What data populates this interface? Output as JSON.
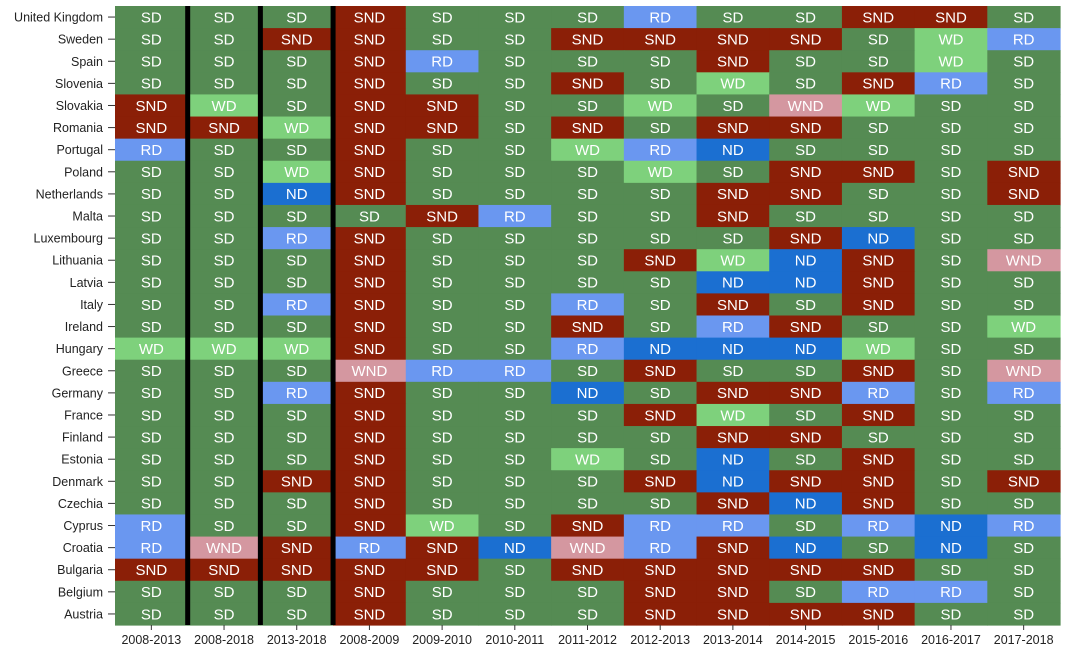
{
  "chart_data": {
    "type": "heatmap",
    "columns": [
      "2008-2013",
      "2008-2018",
      "2013-2018",
      "2008-2009",
      "2009-2010",
      "2010-2011",
      "2011-2012",
      "2012-2013",
      "2013-2014",
      "2014-2015",
      "2015-2016",
      "2016-2017",
      "2017-2018"
    ],
    "rows": [
      "United Kingdom",
      "Sweden",
      "Spain",
      "Slovenia",
      "Slovakia",
      "Romania",
      "Portugal",
      "Poland",
      "Netherlands",
      "Malta",
      "Luxembourg",
      "Lithuania",
      "Latvia",
      "Italy",
      "Ireland",
      "Hungary",
      "Greece",
      "Germany",
      "France",
      "Finland",
      "Estonia",
      "Denmark",
      "Czechia",
      "Cyprus",
      "Croatia",
      "Bulgaria",
      "Belgium",
      "Austria"
    ],
    "values": [
      [
        "SD",
        "SD",
        "SD",
        "SND",
        "SD",
        "SD",
        "SD",
        "RD",
        "SD",
        "SD",
        "SND",
        "SND",
        "SD"
      ],
      [
        "SD",
        "SD",
        "SND",
        "SND",
        "SD",
        "SD",
        "SND",
        "SND",
        "SND",
        "SND",
        "SD",
        "WD",
        "RD"
      ],
      [
        "SD",
        "SD",
        "SD",
        "SND",
        "RD",
        "SD",
        "SD",
        "SD",
        "SND",
        "SD",
        "SD",
        "WD",
        "SD"
      ],
      [
        "SD",
        "SD",
        "SD",
        "SND",
        "SD",
        "SD",
        "SND",
        "SD",
        "WD",
        "SD",
        "SND",
        "RD",
        "SD"
      ],
      [
        "SND",
        "WD",
        "SD",
        "SND",
        "SND",
        "SD",
        "SD",
        "WD",
        "SD",
        "WND",
        "WD",
        "SD",
        "SD"
      ],
      [
        "SND",
        "SND",
        "WD",
        "SND",
        "SND",
        "SD",
        "SND",
        "SD",
        "SND",
        "SND",
        "SD",
        "SD",
        "SD"
      ],
      [
        "RD",
        "SD",
        "SD",
        "SND",
        "SD",
        "SD",
        "WD",
        "RD",
        "ND",
        "SD",
        "SD",
        "SD",
        "SD"
      ],
      [
        "SD",
        "SD",
        "WD",
        "SND",
        "SD",
        "SD",
        "SD",
        "WD",
        "SD",
        "SND",
        "SND",
        "SD",
        "SND"
      ],
      [
        "SD",
        "SD",
        "ND",
        "SND",
        "SD",
        "SD",
        "SD",
        "SD",
        "SND",
        "SND",
        "SD",
        "SD",
        "SND"
      ],
      [
        "SD",
        "SD",
        "SD",
        "SD",
        "SND",
        "RD",
        "SD",
        "SD",
        "SND",
        "SD",
        "SD",
        "SD",
        "SD"
      ],
      [
        "SD",
        "SD",
        "RD",
        "SND",
        "SD",
        "SD",
        "SD",
        "SD",
        "SD",
        "SND",
        "ND",
        "SD",
        "SD"
      ],
      [
        "SD",
        "SD",
        "SD",
        "SND",
        "SD",
        "SD",
        "SD",
        "SND",
        "WD",
        "ND",
        "SND",
        "SD",
        "WND"
      ],
      [
        "SD",
        "SD",
        "SD",
        "SND",
        "SD",
        "SD",
        "SD",
        "SD",
        "ND",
        "ND",
        "SND",
        "SD",
        "SD"
      ],
      [
        "SD",
        "SD",
        "RD",
        "SND",
        "SD",
        "SD",
        "RD",
        "SD",
        "SND",
        "SD",
        "SND",
        "SD",
        "SD"
      ],
      [
        "SD",
        "SD",
        "SD",
        "SND",
        "SD",
        "SD",
        "SND",
        "SD",
        "RD",
        "SND",
        "SD",
        "SD",
        "WD"
      ],
      [
        "WD",
        "WD",
        "WD",
        "SND",
        "SD",
        "SD",
        "RD",
        "ND",
        "ND",
        "ND",
        "WD",
        "SD",
        "SD"
      ],
      [
        "SD",
        "SD",
        "SD",
        "WND",
        "RD",
        "RD",
        "SD",
        "SND",
        "SD",
        "SD",
        "SND",
        "SD",
        "WND"
      ],
      [
        "SD",
        "SD",
        "RD",
        "SND",
        "SD",
        "SD",
        "ND",
        "SD",
        "SND",
        "SND",
        "RD",
        "SD",
        "RD"
      ],
      [
        "SD",
        "SD",
        "SD",
        "SND",
        "SD",
        "SD",
        "SD",
        "SND",
        "WD",
        "SD",
        "SND",
        "SD",
        "SD"
      ],
      [
        "SD",
        "SD",
        "SD",
        "SND",
        "SD",
        "SD",
        "SD",
        "SD",
        "SND",
        "SND",
        "SD",
        "SD",
        "SD"
      ],
      [
        "SD",
        "SD",
        "SD",
        "SND",
        "SD",
        "SD",
        "WD",
        "SD",
        "ND",
        "SD",
        "SND",
        "SD",
        "SD"
      ],
      [
        "SD",
        "SD",
        "SND",
        "SND",
        "SD",
        "SD",
        "SD",
        "SND",
        "ND",
        "SND",
        "SND",
        "SD",
        "SND"
      ],
      [
        "SD",
        "SD",
        "SD",
        "SND",
        "SD",
        "SD",
        "SD",
        "SD",
        "SND",
        "ND",
        "SND",
        "SD",
        "SD"
      ],
      [
        "RD",
        "SD",
        "SD",
        "SND",
        "WD",
        "SD",
        "SND",
        "RD",
        "RD",
        "SD",
        "RD",
        "ND",
        "RD"
      ],
      [
        "RD",
        "WND",
        "SND",
        "RD",
        "SND",
        "ND",
        "WND",
        "RD",
        "SND",
        "ND",
        "SD",
        "ND",
        "SD"
      ],
      [
        "SND",
        "SND",
        "SND",
        "SND",
        "SND",
        "SD",
        "SND",
        "SND",
        "SND",
        "SND",
        "SND",
        "SD",
        "SD"
      ],
      [
        "SD",
        "SD",
        "SD",
        "SND",
        "SD",
        "SD",
        "SD",
        "SND",
        "SND",
        "SD",
        "RD",
        "RD",
        "SD"
      ],
      [
        "SD",
        "SD",
        "SD",
        "SND",
        "SD",
        "SD",
        "SD",
        "SND",
        "SND",
        "SND",
        "SND",
        "SD",
        "SD"
      ]
    ],
    "category_colors": {
      "SD": "#558B53",
      "SND": "#8B1F07",
      "WD": "#7ED17C",
      "WND": "#D497A0",
      "RD": "#6A97F0",
      "ND": "#1B6FD1"
    },
    "text_color": "#FFFFFF",
    "separator_color": "#000000",
    "separators_after_columns": [
      0,
      1,
      2
    ],
    "grid": false,
    "legend": "none"
  }
}
